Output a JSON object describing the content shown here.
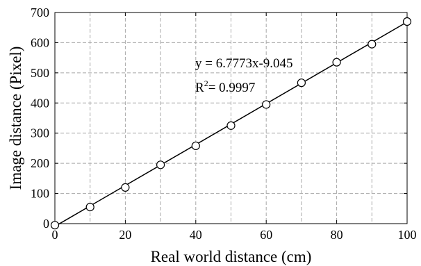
{
  "chart_data": {
    "type": "scatter",
    "title": "",
    "xlabel": "Real world distance (cm)",
    "ylabel": "Image distance (Pixel)",
    "xlim": [
      0,
      100
    ],
    "ylim": [
      0,
      700
    ],
    "xticks": [
      0,
      20,
      40,
      60,
      80,
      100
    ],
    "yticks": [
      0,
      100,
      200,
      300,
      400,
      500,
      600,
      700
    ],
    "xtick_labels": [
      "0",
      "20",
      "40",
      "60",
      "80",
      "100"
    ],
    "ytick_labels": [
      "0",
      "100",
      "200",
      "300",
      "400",
      "500",
      "600",
      "700"
    ],
    "grid": true,
    "grid_x": [
      0,
      10,
      20,
      30,
      40,
      50,
      60,
      70,
      80,
      90,
      100
    ],
    "series": [
      {
        "marker": "open-circle",
        "x": [
          0,
          10,
          20,
          30,
          40,
          50,
          60,
          70,
          80,
          90,
          100
        ],
        "y": [
          -5,
          55,
          120,
          195,
          258,
          325,
          395,
          467,
          535,
          595,
          670
        ]
      }
    ],
    "fit": {
      "slope": 6.7773,
      "intercept": -9.045,
      "equation_text": "y = 6.7773x-9.045",
      "r2_prefix": "R",
      "r2_sup": "2",
      "r2_value_text": "= 0.9997"
    }
  }
}
